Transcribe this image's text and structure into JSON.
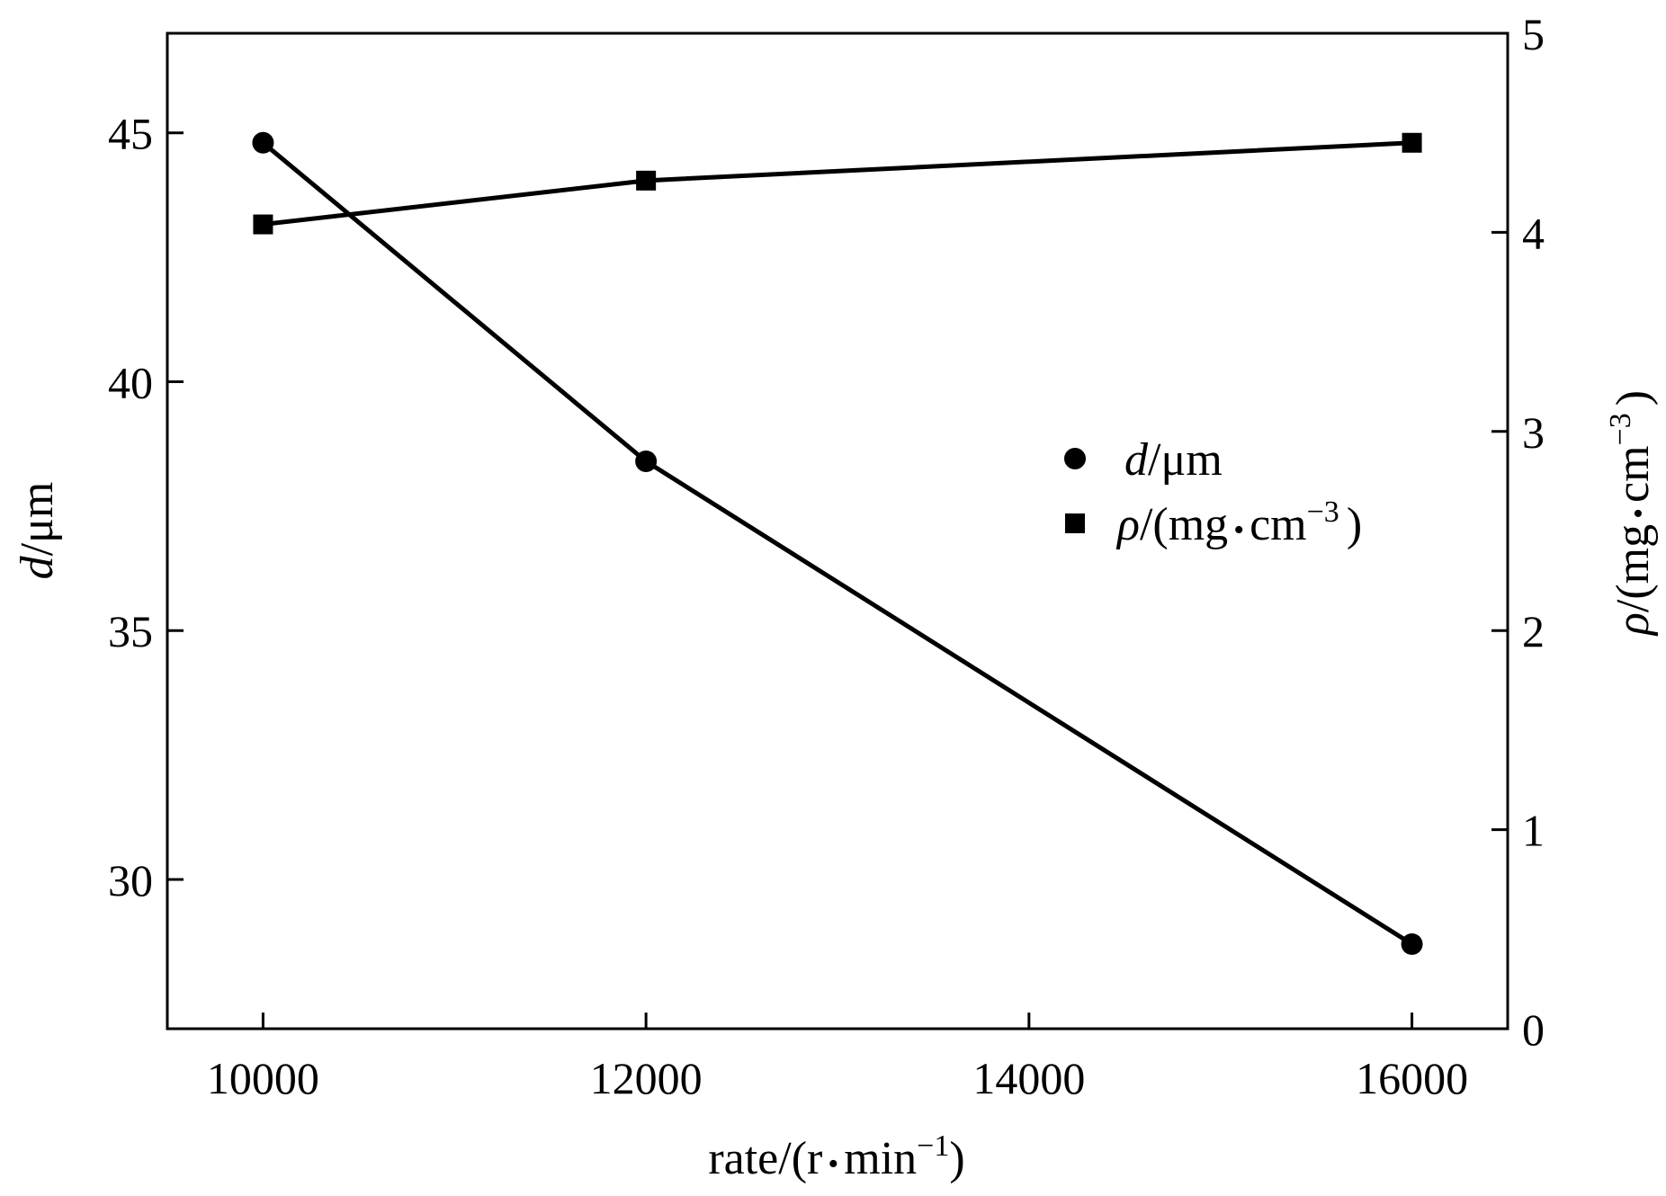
{
  "chart_data": {
    "type": "line",
    "title": "",
    "x": [
      10000,
      12000,
      16000
    ],
    "xlabel": {
      "main": "rate/(r",
      "dot": "•",
      "unit": "min",
      "sup": "−1",
      "close": ")"
    },
    "xticks": [
      "10000",
      "12000",
      "14000",
      "16000"
    ],
    "xlim": [
      9500,
      16500
    ],
    "ylabel_left": {
      "var": "d",
      "unit": "/μm"
    },
    "yticks_left": [
      "30",
      "35",
      "40",
      "45"
    ],
    "ylim_left": [
      27,
      47
    ],
    "ylabel_right": {
      "var": "ρ",
      "slash": "/",
      "open": "(mg",
      "dot": "•",
      "unit": "cm",
      "sup": "−3",
      "close": ")"
    },
    "yticks_right": [
      "0",
      "1",
      "2",
      "3",
      "4",
      "5"
    ],
    "ylim_right": [
      0,
      5
    ],
    "grid": false,
    "legend_position": "right-middle",
    "series": [
      {
        "name": "d/μm",
        "axis": "left",
        "marker": "circle",
        "values": [
          44.8,
          38.4,
          28.7
        ]
      },
      {
        "name": "ρ/(mg•cm−3)",
        "axis": "right",
        "marker": "square",
        "values": [
          4.04,
          4.26,
          4.45
        ]
      }
    ],
    "legend": [
      {
        "var": "d",
        "rest": "/μm"
      },
      {
        "var": "ρ",
        "rest": "/(mg",
        "dot": "•",
        "unit": "cm",
        "sup": "−3",
        "close": ")"
      }
    ]
  }
}
